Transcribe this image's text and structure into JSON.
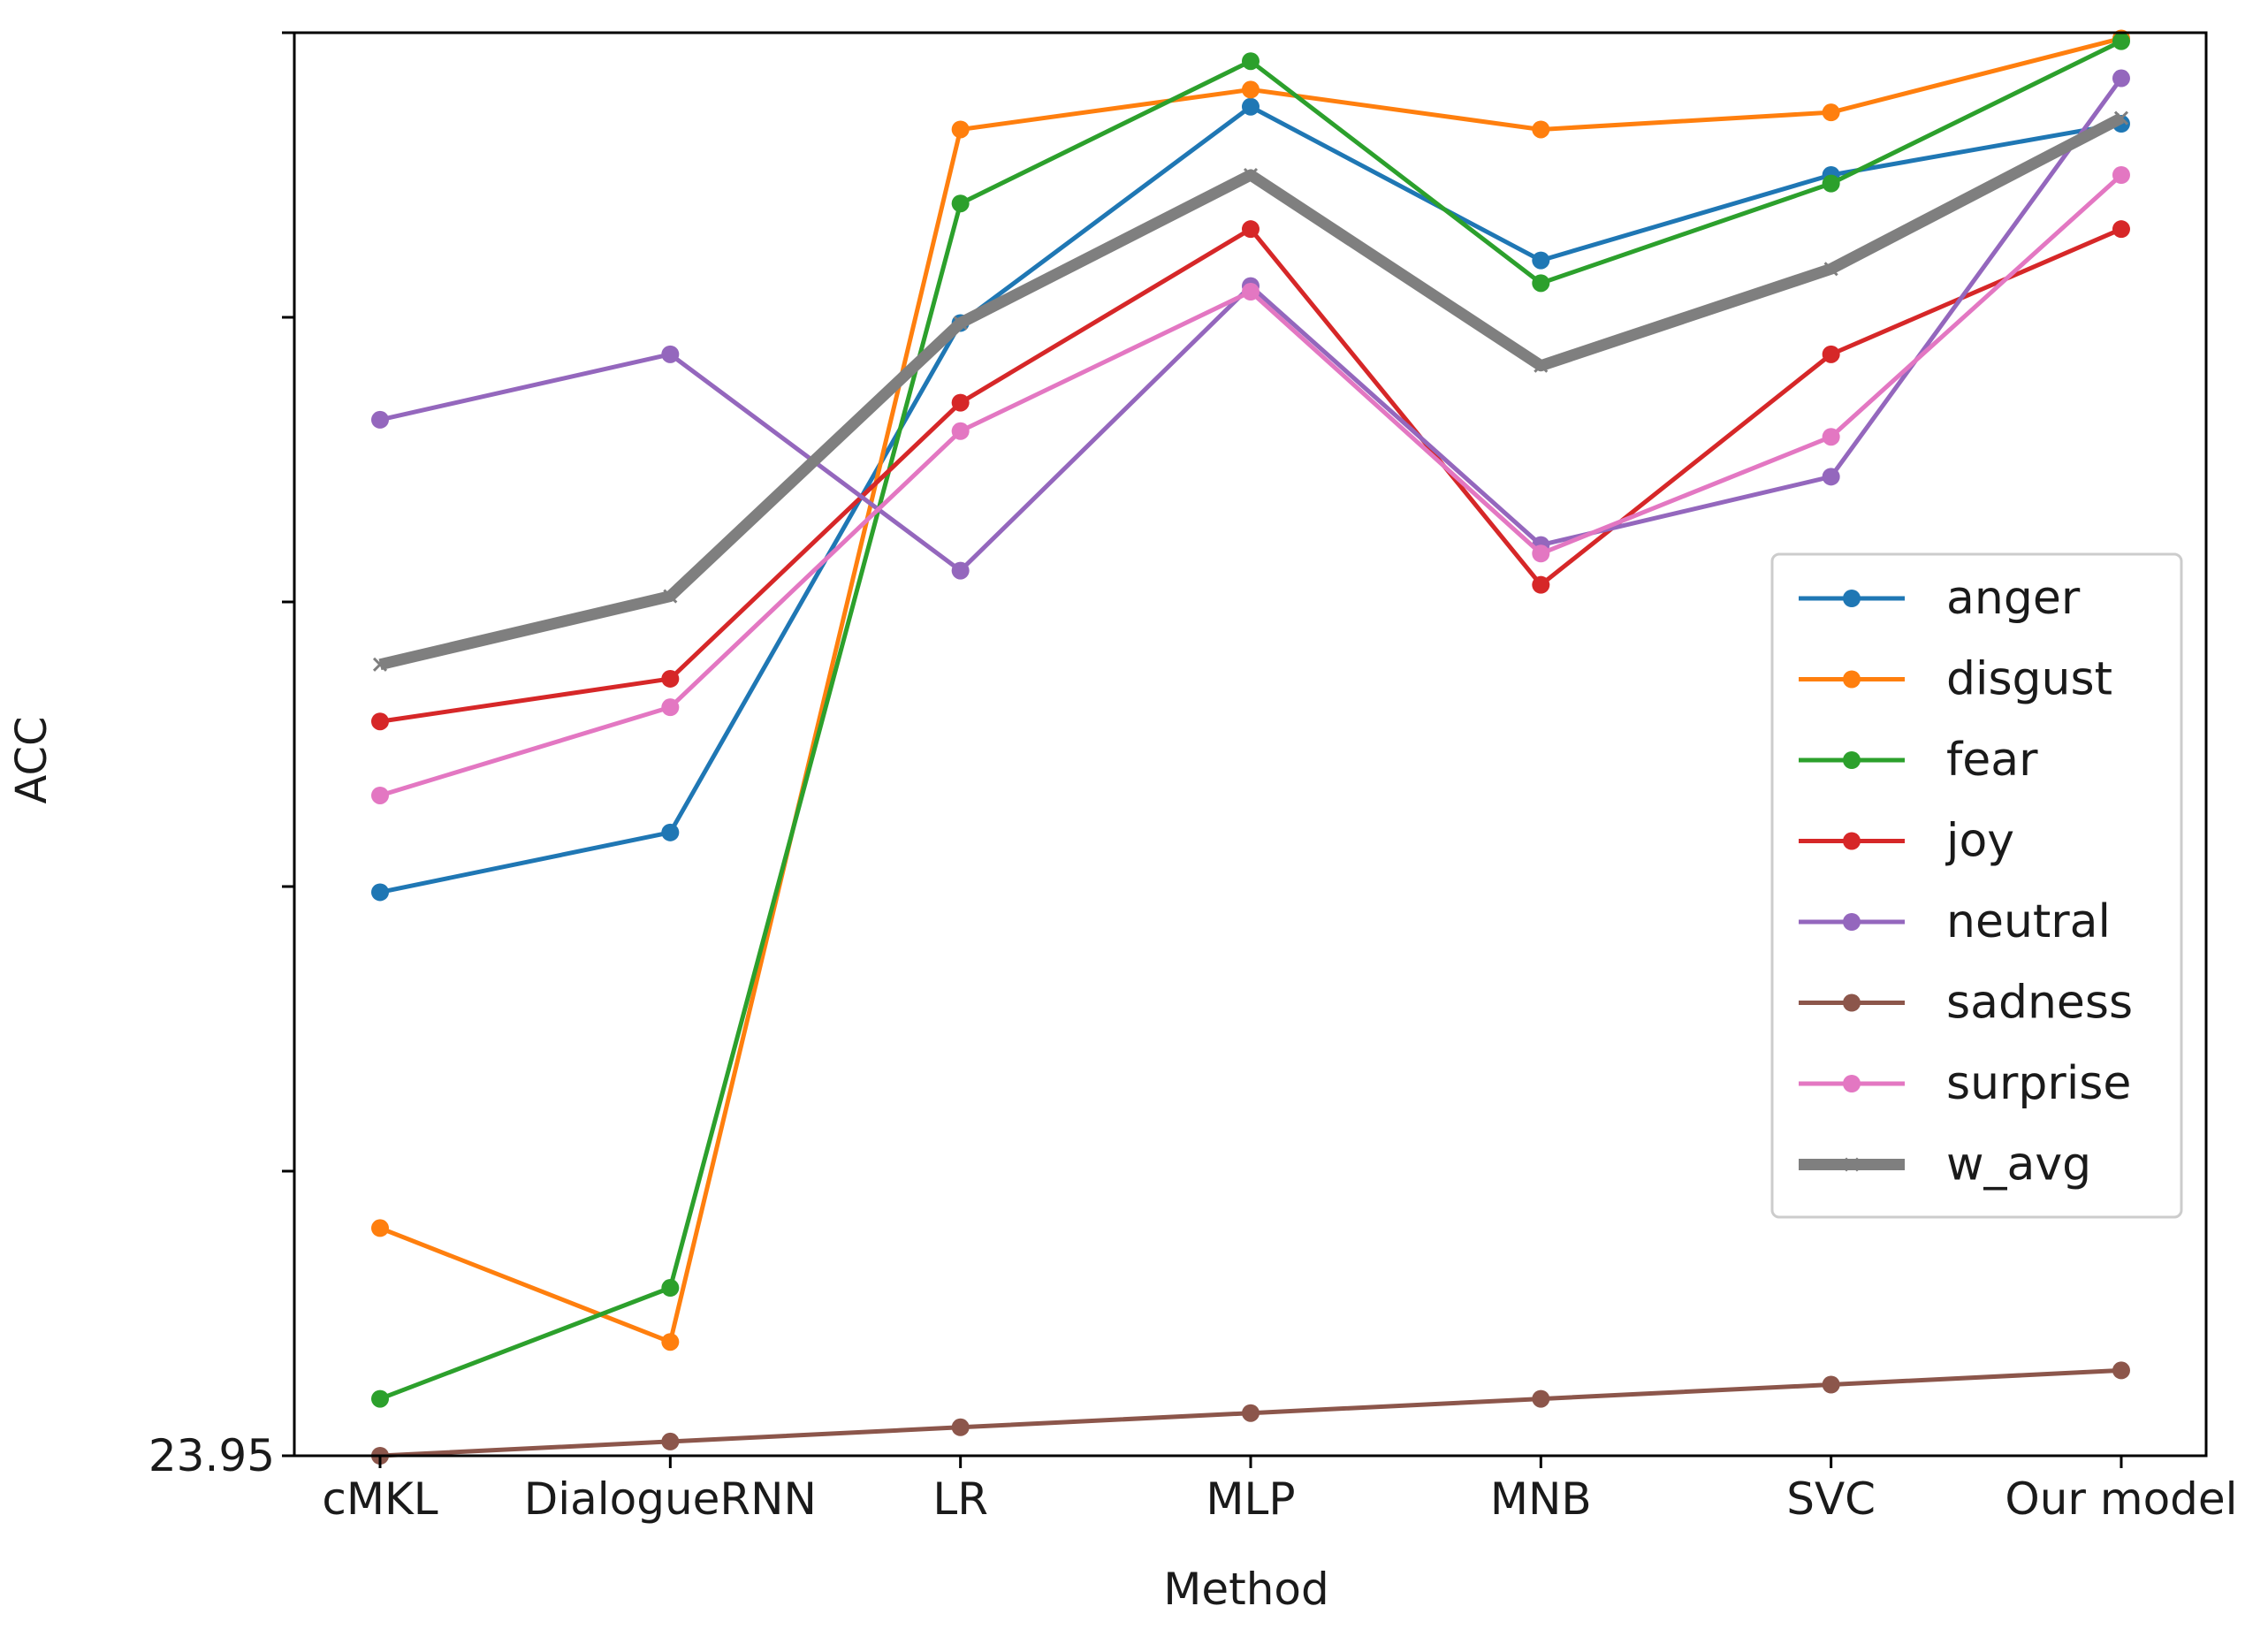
{
  "chart_data": {
    "type": "line",
    "title": "",
    "xlabel": "Method",
    "ylabel": "ACC",
    "categories": [
      "cMKL",
      "DialogueRNN",
      "LR",
      "MLP",
      "MNB",
      "SVC",
      "Our model"
    ],
    "y_ticks": [
      {
        "value": 0,
        "label": "23.95"
      },
      {
        "value": 1,
        "label": ""
      },
      {
        "value": 2,
        "label": ""
      },
      {
        "value": 3,
        "label": ""
      },
      {
        "value": 4,
        "label": ""
      },
      {
        "value": 5,
        "label": ""
      }
    ],
    "ylim": [
      0,
      5
    ],
    "grid": false,
    "legend_position": "center-right",
    "series": [
      {
        "name": "anger",
        "color": "#1f77b4",
        "values": [
          1.98,
          2.19,
          3.98,
          4.74,
          4.2,
          4.5,
          4.68
        ],
        "marker": "circle",
        "line_width": "normal"
      },
      {
        "name": "disgust",
        "color": "#ff7f0e",
        "values": [
          0.8,
          0.4,
          4.66,
          4.8,
          4.66,
          4.72,
          4.98
        ],
        "marker": "circle",
        "line_width": "normal"
      },
      {
        "name": "fear",
        "color": "#2ca02c",
        "values": [
          0.2,
          0.59,
          4.4,
          4.9,
          4.12,
          4.47,
          4.97
        ],
        "marker": "circle",
        "line_width": "normal"
      },
      {
        "name": "joy",
        "color": "#d62728",
        "values": [
          2.58,
          2.73,
          3.7,
          4.31,
          3.06,
          3.87,
          4.31
        ],
        "marker": "circle",
        "line_width": "normal"
      },
      {
        "name": "neutral",
        "color": "#9467bd",
        "values": [
          3.64,
          3.87,
          3.11,
          4.11,
          3.2,
          3.44,
          4.84
        ],
        "marker": "circle",
        "line_width": "normal"
      },
      {
        "name": "sadness",
        "color": "#8c564b",
        "values": [
          0.0,
          0.05,
          0.1,
          0.15,
          0.2,
          0.25,
          0.3
        ],
        "marker": "circle",
        "line_width": "normal"
      },
      {
        "name": "surprise",
        "color": "#e377c2",
        "values": [
          2.32,
          2.63,
          3.6,
          4.09,
          3.17,
          3.58,
          4.5
        ],
        "marker": "circle",
        "line_width": "normal"
      },
      {
        "name": "w_avg",
        "color": "#7f7f7f",
        "values": [
          2.78,
          3.02,
          3.98,
          4.5,
          3.83,
          4.17,
          4.7
        ],
        "marker": "x",
        "line_width": "thick"
      }
    ]
  }
}
